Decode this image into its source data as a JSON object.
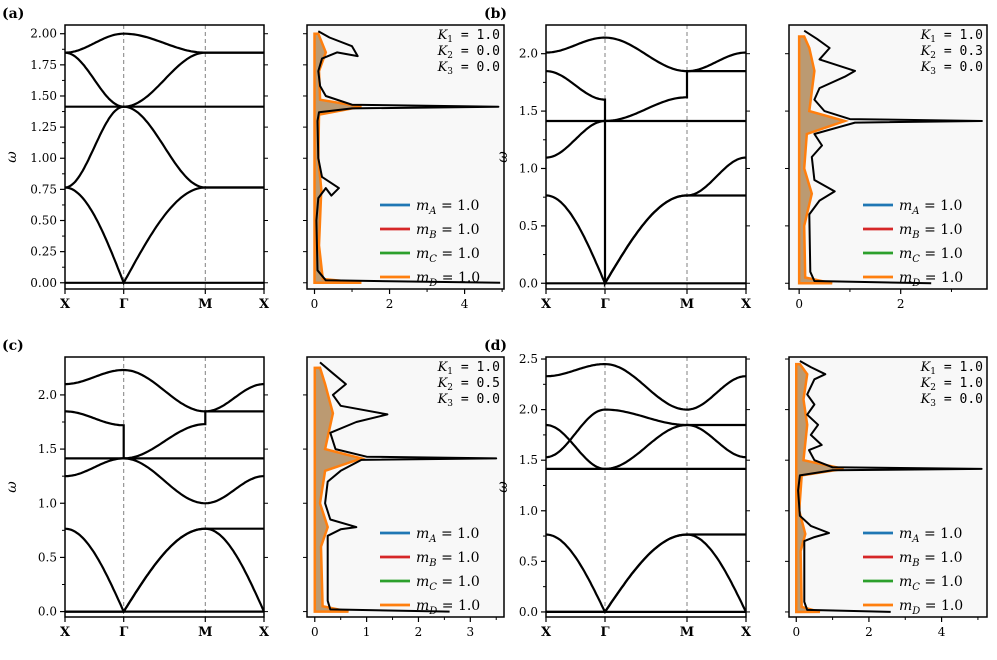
{
  "figure": {
    "panel_labels": [
      "(a)",
      "(b)",
      "(c)",
      "(d)"
    ]
  },
  "chart_data": [
    {
      "panel": "(a)",
      "type": "line",
      "kind": "phonon band structure",
      "ylabel": "ω",
      "x_ticks": [
        "X",
        "Γ",
        "M",
        "X"
      ],
      "ylim": [
        -0.05,
        2.07
      ],
      "y_ticks": [
        "0.00",
        "0.25",
        "0.50",
        "0.75",
        "1.00",
        "1.25",
        "1.50",
        "1.75",
        "2.00"
      ],
      "y_tick_values": [
        0,
        0.25,
        0.5,
        0.75,
        1.0,
        1.25,
        1.5,
        1.75,
        2.0
      ],
      "params": {
        "K1": "1.0",
        "K2": "0.0",
        "K3": "0.0"
      },
      "bands": [
        {
          "segments": [
            [
              0.0,
              0.0
            ],
            [
              0.0,
              0.0
            ],
            [
              0.0,
              0.0
            ]
          ]
        },
        {
          "segments": [
            [
              0.765,
              0.0
            ],
            [
              0.0,
              0.765
            ],
            [
              0.765,
              0.765
            ]
          ]
        },
        {
          "segments": [
            [
              0.765,
              1.414
            ],
            [
              1.414,
              0.765
            ],
            [
              0.765,
              0.765
            ]
          ]
        },
        {
          "segments": [
            [
              1.414,
              1.414
            ],
            [
              1.414,
              1.414
            ],
            [
              1.414,
              1.414
            ]
          ]
        },
        {
          "segments": [
            [
              1.848,
              1.414
            ],
            [
              1.414,
              1.848
            ],
            [
              1.848,
              1.848
            ]
          ]
        },
        {
          "segments": [
            [
              1.848,
              2.0
            ],
            [
              2.0,
              1.848
            ],
            [
              1.848,
              1.848
            ]
          ]
        }
      ]
    },
    {
      "panel": "(a)",
      "type": "line",
      "kind": "density of states",
      "x_ticks": [
        "0",
        "2",
        "4"
      ],
      "x_tick_values": [
        0,
        2,
        4
      ],
      "xlim": [
        -0.2,
        5.05
      ],
      "ylim": [
        -0.05,
        2.07
      ],
      "params": {
        "K1": "1.0",
        "K2": "0.0",
        "K3": "0.0"
      },
      "legend": [
        "m_A = 1.0",
        "m_B = 1.0",
        "m_C = 1.0",
        "m_D = 1.0"
      ],
      "legend_colors": [
        "#1f77b4",
        "#d62728",
        "#2ca02c",
        "#ff7f0e"
      ],
      "total_dos": [
        [
          4.95,
          0.0
        ],
        [
          0.3,
          0.02
        ],
        [
          0.08,
          0.1
        ],
        [
          0.05,
          0.5
        ],
        [
          0.1,
          0.68
        ],
        [
          0.3,
          0.76
        ],
        [
          0.45,
          0.7
        ],
        [
          0.65,
          0.76
        ],
        [
          0.2,
          0.85
        ],
        [
          0.1,
          1.0
        ],
        [
          0.08,
          1.3
        ],
        [
          0.12,
          1.37
        ],
        [
          1.0,
          1.4
        ],
        [
          4.9,
          1.414
        ],
        [
          1.0,
          1.43
        ],
        [
          0.3,
          1.5
        ],
        [
          0.15,
          1.58
        ],
        [
          0.1,
          1.7
        ],
        [
          0.2,
          1.8
        ],
        [
          0.6,
          1.85
        ],
        [
          1.15,
          1.82
        ],
        [
          1.0,
          1.9
        ],
        [
          0.4,
          1.97
        ],
        [
          0.1,
          2.02
        ]
      ],
      "partial_dos": [
        [
          1.25,
          0.0
        ],
        [
          0.22,
          0.03
        ],
        [
          0.12,
          0.3
        ],
        [
          0.18,
          0.75
        ],
        [
          0.1,
          1.0
        ],
        [
          0.12,
          1.35
        ],
        [
          1.25,
          1.414
        ],
        [
          0.15,
          1.47
        ],
        [
          0.12,
          1.7
        ],
        [
          0.3,
          1.85
        ],
        [
          0.1,
          2.0
        ]
      ]
    },
    {
      "panel": "(b)",
      "type": "line",
      "kind": "phonon band structure",
      "ylabel": "ω",
      "x_ticks": [
        "X",
        "Γ",
        "M",
        "X"
      ],
      "ylim": [
        -0.05,
        2.25
      ],
      "y_ticks": [
        "0.0",
        "0.5",
        "1.0",
        "1.5",
        "2.0"
      ],
      "y_tick_values": [
        0,
        0.5,
        1.0,
        1.5,
        2.0
      ],
      "params": {
        "K1": "1.0",
        "K2": "0.3",
        "K3": "0.0"
      },
      "bands": [
        {
          "segments": [
            [
              0.0,
              0.0
            ],
            [
              0.0,
              0.0
            ],
            [
              0.0,
              0.0
            ]
          ]
        },
        {
          "segments": [
            [
              0.765,
              0.0
            ],
            [
              0.0,
              0.765
            ],
            [
              0.765,
              1.095
            ]
          ]
        },
        {
          "segments": [
            [
              1.095,
              1.414
            ],
            [
              0.0,
              0.765
            ],
            [
              0.765,
              0.765
            ]
          ]
        },
        {
          "segments": [
            [
              1.414,
              1.414
            ],
            [
              1.414,
              1.414
            ],
            [
              1.414,
              1.414
            ]
          ]
        },
        {
          "segments": [
            [
              1.848,
              1.6
            ],
            [
              1.414,
              1.62
            ],
            [
              1.848,
              1.848
            ]
          ]
        },
        {
          "segments": [
            [
              2.01,
              2.14
            ],
            [
              2.14,
              1.848
            ],
            [
              1.848,
              2.01
            ]
          ]
        }
      ]
    },
    {
      "panel": "(b)",
      "type": "line",
      "kind": "density of states",
      "x_ticks": [
        "0",
        "2"
      ],
      "x_tick_values": [
        0,
        2
      ],
      "xlim": [
        -0.2,
        3.7
      ],
      "ylim": [
        -0.05,
        2.25
      ],
      "params": {
        "K1": "1.0",
        "K2": "0.3",
        "K3": "0.0"
      },
      "legend": [
        "m_A = 1.0",
        "m_B = 1.0",
        "m_C = 1.0",
        "m_D = 1.0"
      ],
      "legend_colors": [
        "#1f77b4",
        "#d62728",
        "#2ca02c",
        "#ff7f0e"
      ],
      "total_dos": [
        [
          2.6,
          0.0
        ],
        [
          0.3,
          0.02
        ],
        [
          0.22,
          0.1
        ],
        [
          0.2,
          0.6
        ],
        [
          0.4,
          0.72
        ],
        [
          0.7,
          0.8
        ],
        [
          0.3,
          0.9
        ],
        [
          0.25,
          1.1
        ],
        [
          0.45,
          1.2
        ],
        [
          0.3,
          1.3
        ],
        [
          1.1,
          1.4
        ],
        [
          3.6,
          1.414
        ],
        [
          1.0,
          1.43
        ],
        [
          0.5,
          1.5
        ],
        [
          0.3,
          1.6
        ],
        [
          0.4,
          1.7
        ],
        [
          0.9,
          1.8
        ],
        [
          1.1,
          1.85
        ],
        [
          0.4,
          1.95
        ],
        [
          0.6,
          2.05
        ],
        [
          0.35,
          2.13
        ],
        [
          0.1,
          2.2
        ]
      ],
      "partial_dos": [
        [
          0.65,
          0.0
        ],
        [
          0.12,
          0.05
        ],
        [
          0.1,
          0.5
        ],
        [
          0.25,
          0.78
        ],
        [
          0.1,
          1.0
        ],
        [
          0.15,
          1.3
        ],
        [
          0.9,
          1.414
        ],
        [
          0.2,
          1.5
        ],
        [
          0.3,
          1.85
        ],
        [
          0.2,
          2.05
        ],
        [
          0.1,
          2.15
        ]
      ]
    },
    {
      "panel": "(c)",
      "type": "line",
      "kind": "phonon band structure",
      "ylabel": "ω",
      "x_ticks": [
        "X",
        "Γ",
        "M",
        "X"
      ],
      "ylim": [
        -0.05,
        2.35
      ],
      "y_ticks": [
        "0.0",
        "0.5",
        "1.0",
        "1.5",
        "2.0"
      ],
      "y_tick_values": [
        0,
        0.5,
        1.0,
        1.5,
        2.0
      ],
      "params": {
        "K1": "1.0",
        "K2": "0.5",
        "K3": "0.0"
      },
      "bands": [
        {
          "segments": [
            [
              0.0,
              0.0
            ],
            [
              0.0,
              0.0
            ],
            [
              0.0,
              0.0
            ]
          ]
        },
        {
          "segments": [
            [
              0.765,
              0.0
            ],
            [
              0.0,
              0.765
            ],
            [
              0.765,
              0.765
            ]
          ]
        },
        {
          "segments": [
            [
              0.0,
              0.0
            ],
            [
              0.0,
              0.765
            ],
            [
              0.765,
              0.0
            ]
          ]
        },
        {
          "segments": [
            [
              1.414,
              1.414
            ],
            [
              1.414,
              1.414
            ],
            [
              1.414,
              1.414
            ]
          ]
        },
        {
          "segments": [
            [
              1.25,
              1.414
            ],
            [
              1.414,
              1.0
            ],
            [
              1.0,
              1.25
            ]
          ]
        },
        {
          "segments": [
            [
              1.848,
              1.72
            ],
            [
              1.414,
              1.73
            ],
            [
              1.848,
              1.848
            ]
          ]
        },
        {
          "segments": [
            [
              2.1,
              2.23
            ],
            [
              2.23,
              1.848
            ],
            [
              1.848,
              2.1
            ]
          ]
        }
      ]
    },
    {
      "panel": "(c)",
      "type": "line",
      "kind": "density of states",
      "x_ticks": [
        "0",
        "1",
        "2",
        "3"
      ],
      "x_tick_values": [
        0,
        1,
        2,
        3
      ],
      "xlim": [
        -0.15,
        3.65
      ],
      "ylim": [
        -0.05,
        2.35
      ],
      "params": {
        "K1": "1.0",
        "K2": "0.5",
        "K3": "0.0"
      },
      "legend": [
        "m_A = 1.0",
        "m_B = 1.0",
        "m_C = 1.0",
        "m_D = 1.0"
      ],
      "legend_colors": [
        "#1f77b4",
        "#d62728",
        "#2ca02c",
        "#ff7f0e"
      ],
      "total_dos": [
        [
          2.6,
          0.0
        ],
        [
          0.3,
          0.02
        ],
        [
          0.25,
          0.1
        ],
        [
          0.25,
          0.7
        ],
        [
          0.5,
          0.76
        ],
        [
          0.8,
          0.78
        ],
        [
          0.3,
          0.85
        ],
        [
          0.2,
          1.0
        ],
        [
          0.25,
          1.2
        ],
        [
          0.5,
          1.3
        ],
        [
          0.9,
          1.4
        ],
        [
          3.5,
          1.414
        ],
        [
          1.0,
          1.43
        ],
        [
          0.4,
          1.5
        ],
        [
          0.3,
          1.65
        ],
        [
          0.8,
          1.75
        ],
        [
          1.4,
          1.82
        ],
        [
          0.5,
          1.9
        ],
        [
          0.35,
          2.0
        ],
        [
          0.6,
          2.1
        ],
        [
          0.35,
          2.2
        ],
        [
          0.1,
          2.3
        ]
      ],
      "partial_dos": [
        [
          0.65,
          0.0
        ],
        [
          0.15,
          0.05
        ],
        [
          0.12,
          0.6
        ],
        [
          0.25,
          0.78
        ],
        [
          0.1,
          1.0
        ],
        [
          0.2,
          1.3
        ],
        [
          0.9,
          1.414
        ],
        [
          0.2,
          1.5
        ],
        [
          0.35,
          1.83
        ],
        [
          0.2,
          2.1
        ],
        [
          0.1,
          2.25
        ]
      ]
    },
    {
      "panel": "(d)",
      "type": "line",
      "kind": "phonon band structure",
      "ylabel": "ω",
      "x_ticks": [
        "X",
        "Γ",
        "M",
        "X"
      ],
      "ylim": [
        -0.05,
        2.52
      ],
      "y_ticks": [
        "0.0",
        "0.5",
        "1.0",
        "1.5",
        "2.0",
        "2.5"
      ],
      "y_tick_values": [
        0,
        0.5,
        1.0,
        1.5,
        2.0,
        2.5
      ],
      "params": {
        "K1": "1.0",
        "K2": "1.0",
        "K3": "0.0"
      },
      "bands": [
        {
          "segments": [
            [
              0.0,
              0.0
            ],
            [
              0.0,
              0.0
            ],
            [
              0.0,
              0.0
            ]
          ]
        },
        {
          "segments": [
            [
              0.765,
              0.0
            ],
            [
              0.0,
              0.765
            ],
            [
              0.765,
              0.765
            ]
          ]
        },
        {
          "segments": [
            [
              0.0,
              0.0
            ],
            [
              0.0,
              0.765
            ],
            [
              0.765,
              0.0
            ]
          ]
        },
        {
          "segments": [
            [
              1.414,
              1.414
            ],
            [
              1.414,
              1.414
            ],
            [
              1.414,
              1.414
            ]
          ]
        },
        {
          "segments": [
            [
              1.848,
              1.414
            ],
            [
              1.414,
              1.848
            ],
            [
              1.848,
              1.848
            ]
          ]
        },
        {
          "segments": [
            [
              1.53,
              2.0
            ],
            [
              2.0,
              1.848
            ],
            [
              1.848,
              1.53
            ]
          ]
        },
        {
          "segments": [
            [
              2.33,
              2.45
            ],
            [
              2.45,
              2.0
            ],
            [
              2.0,
              2.33
            ]
          ]
        }
      ]
    },
    {
      "panel": "(d)",
      "type": "line",
      "kind": "density of states",
      "x_ticks": [
        "0",
        "2",
        "4"
      ],
      "x_tick_values": [
        0,
        2,
        4
      ],
      "xlim": [
        -0.2,
        5.25
      ],
      "ylim": [
        -0.05,
        2.52
      ],
      "params": {
        "K1": "1.0",
        "K2": "1.0",
        "K3": "0.0"
      },
      "legend": [
        "m_A = 1.0",
        "m_B = 1.0",
        "m_C = 1.0",
        "m_D = 1.0"
      ],
      "legend_colors": [
        "#1f77b4",
        "#d62728",
        "#2ca02c",
        "#ff7f0e"
      ],
      "total_dos": [
        [
          2.6,
          0.0
        ],
        [
          0.3,
          0.02
        ],
        [
          0.22,
          0.1
        ],
        [
          0.22,
          0.7
        ],
        [
          0.5,
          0.74
        ],
        [
          0.9,
          0.78
        ],
        [
          0.4,
          0.85
        ],
        [
          0.1,
          0.95
        ],
        [
          0.05,
          1.2
        ],
        [
          0.1,
          1.35
        ],
        [
          1.0,
          1.4
        ],
        [
          5.1,
          1.414
        ],
        [
          1.0,
          1.43
        ],
        [
          0.5,
          1.5
        ],
        [
          0.35,
          1.6
        ],
        [
          0.7,
          1.65
        ],
        [
          0.4,
          1.75
        ],
        [
          0.6,
          1.85
        ],
        [
          0.3,
          1.95
        ],
        [
          0.5,
          2.05
        ],
        [
          0.3,
          2.15
        ],
        [
          0.5,
          2.3
        ],
        [
          0.8,
          2.35
        ],
        [
          0.4,
          2.42
        ],
        [
          0.1,
          2.48
        ]
      ],
      "partial_dos": [
        [
          0.65,
          0.0
        ],
        [
          0.15,
          0.05
        ],
        [
          0.12,
          0.6
        ],
        [
          0.25,
          0.77
        ],
        [
          0.08,
          1.0
        ],
        [
          0.15,
          1.35
        ],
        [
          1.3,
          1.414
        ],
        [
          0.2,
          1.5
        ],
        [
          0.3,
          1.85
        ],
        [
          0.2,
          2.1
        ],
        [
          0.3,
          2.35
        ],
        [
          0.1,
          2.45
        ]
      ]
    }
  ],
  "colors": {
    "band_line": "#000000",
    "high_symmetry_line": "#808080",
    "dos_background": "#f8f8f8",
    "partial_dos_fill": "#b08a5a",
    "legend_blue": "#1f77b4",
    "legend_red": "#d62728",
    "legend_green": "#2ca02c",
    "legend_orange": "#ff7f0e"
  }
}
